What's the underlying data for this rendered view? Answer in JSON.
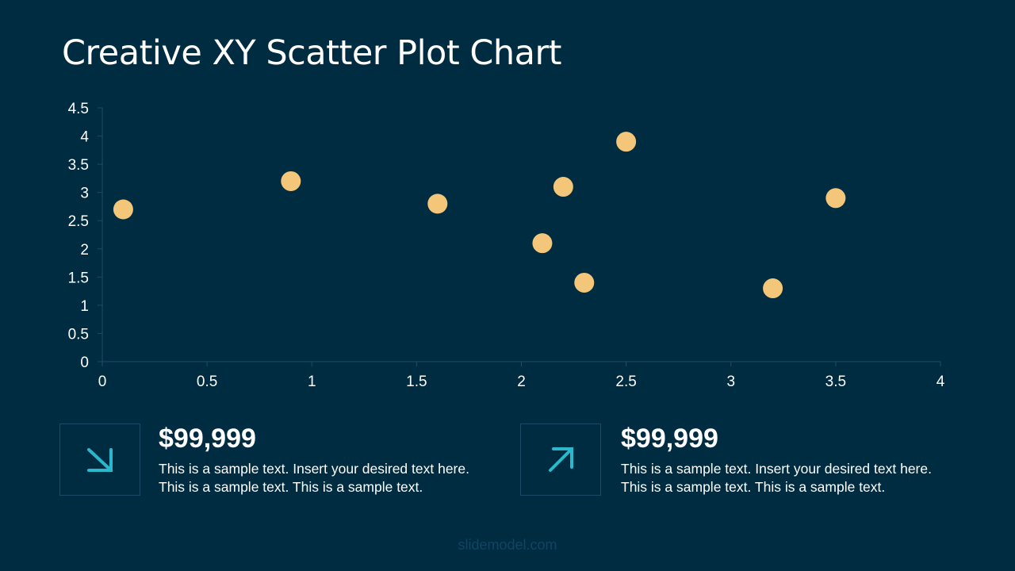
{
  "title": "Creative XY Scatter Plot Chart",
  "chart_data": {
    "type": "scatter",
    "title": "",
    "xlabel": "",
    "ylabel": "",
    "xlim": [
      0,
      4
    ],
    "ylim": [
      0,
      4.5
    ],
    "x_ticks": [
      "0",
      "0.5",
      "1",
      "1.5",
      "2",
      "2.5",
      "3",
      "3.5",
      "4"
    ],
    "y_ticks": [
      "0",
      "0.5",
      "1",
      "1.5",
      "2",
      "2.5",
      "3",
      "3.5",
      "4",
      "4.5"
    ],
    "grid": false,
    "marker_color": "#f3c67a",
    "points": [
      {
        "x": 0.1,
        "y": 2.7
      },
      {
        "x": 0.9,
        "y": 3.2
      },
      {
        "x": 1.6,
        "y": 2.8
      },
      {
        "x": 2.1,
        "y": 2.1
      },
      {
        "x": 2.2,
        "y": 3.1
      },
      {
        "x": 2.3,
        "y": 1.4
      },
      {
        "x": 2.5,
        "y": 3.9
      },
      {
        "x": 3.2,
        "y": 1.3
      },
      {
        "x": 3.5,
        "y": 2.9
      }
    ]
  },
  "cards": [
    {
      "icon": "arrow-down-right-icon",
      "value": "$99,999",
      "line1": "This is a sample text. Insert your desired text here.",
      "line2": "This is a sample text. This is a sample text."
    },
    {
      "icon": "arrow-up-right-icon",
      "value": "$99,999",
      "line1": "This is a sample text. Insert your desired text here.",
      "line2": "This is a sample text. This is a sample text."
    }
  ],
  "accent_color": "#2ab8cc",
  "watermark": "slidemodel.com"
}
